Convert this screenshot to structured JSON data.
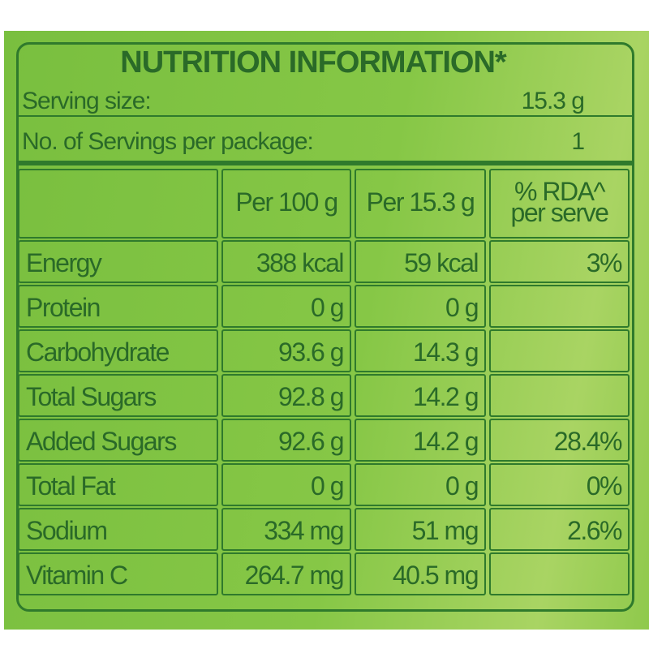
{
  "header": {
    "title": "NUTRITION INFORMATION*"
  },
  "serving": {
    "label": "Serving size:",
    "value": "15.3 g"
  },
  "servings_per_package": {
    "label": "No. of Servings per package:",
    "value": "1"
  },
  "table": {
    "columns": [
      "Per 100 g",
      "Per 15.3 g",
      "% RDA^ per serve"
    ],
    "rows": [
      [
        "Energy",
        "388 kcal",
        "59 kcal",
        "3%"
      ],
      [
        "Protein",
        "0 g",
        "0 g",
        null
      ],
      [
        "Carbohydrate",
        "93.6 g",
        "14.3 g",
        null
      ],
      [
        "Total Sugars",
        "92.8 g",
        "14.2 g",
        null
      ],
      [
        "Added Sugars",
        "92.6 g",
        "14.2 g",
        "28.4%"
      ],
      [
        "Total Fat",
        "0 g",
        "0 g",
        "0%"
      ],
      [
        "Sodium",
        "334 mg",
        "51 mg",
        "2.6%"
      ],
      [
        "Vitamin C",
        "264.7 mg",
        "40.5 mg",
        null
      ]
    ]
  }
}
